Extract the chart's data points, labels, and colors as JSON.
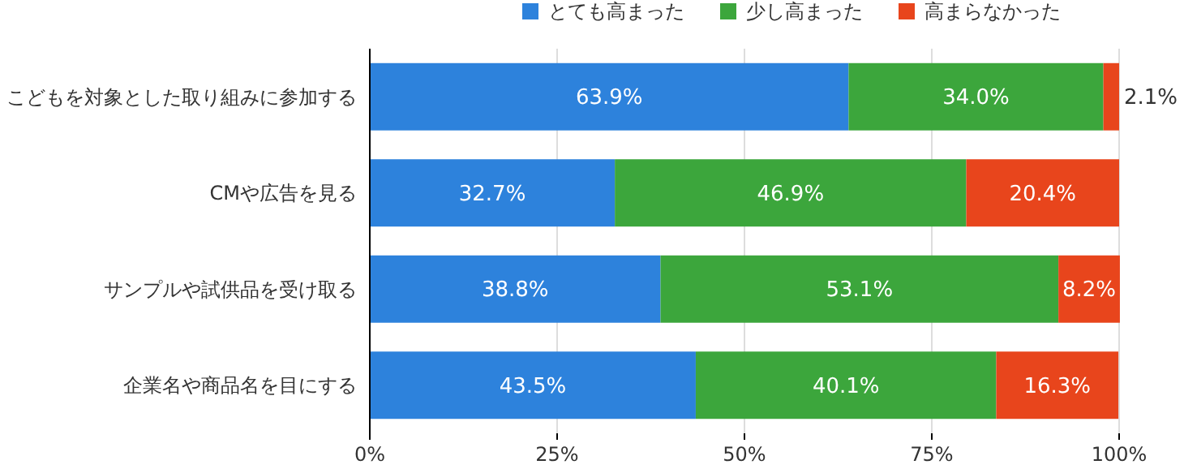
{
  "chart_data": {
    "type": "bar",
    "orientation": "horizontal",
    "stacked": true,
    "categories": [
      "こどもを対象とした取り組みに参加する",
      "CMや広告を見る",
      "サンプルや試供品を受け取る",
      "企業名や商品名を目にする"
    ],
    "series": [
      {
        "name": "とても高まった",
        "color": "#2d82dc",
        "values": [
          63.9,
          32.7,
          38.8,
          43.5
        ],
        "value_labels": [
          "63.9%",
          "32.7%",
          "38.8%",
          "43.5%"
        ]
      },
      {
        "name": "少し高まった",
        "color": "#3ca63c",
        "values": [
          34.0,
          46.9,
          53.1,
          40.1
        ],
        "value_labels": [
          "34.0%",
          "46.9%",
          "53.1%",
          "40.1%"
        ]
      },
      {
        "name": "高まらなかった",
        "color": "#e8451c",
        "values": [
          2.1,
          20.4,
          8.2,
          16.3
        ],
        "value_labels": [
          "2.1%",
          "20.4%",
          "8.2%",
          "16.3%"
        ]
      }
    ],
    "xlim": [
      0,
      100
    ],
    "xticks": [
      {
        "value": 0,
        "label": "0%"
      },
      {
        "value": 25,
        "label": "25%"
      },
      {
        "value": 50,
        "label": "50%"
      },
      {
        "value": 75,
        "label": "75%"
      },
      {
        "value": 100,
        "label": "100%"
      }
    ],
    "grid": "x",
    "legend": "top"
  }
}
